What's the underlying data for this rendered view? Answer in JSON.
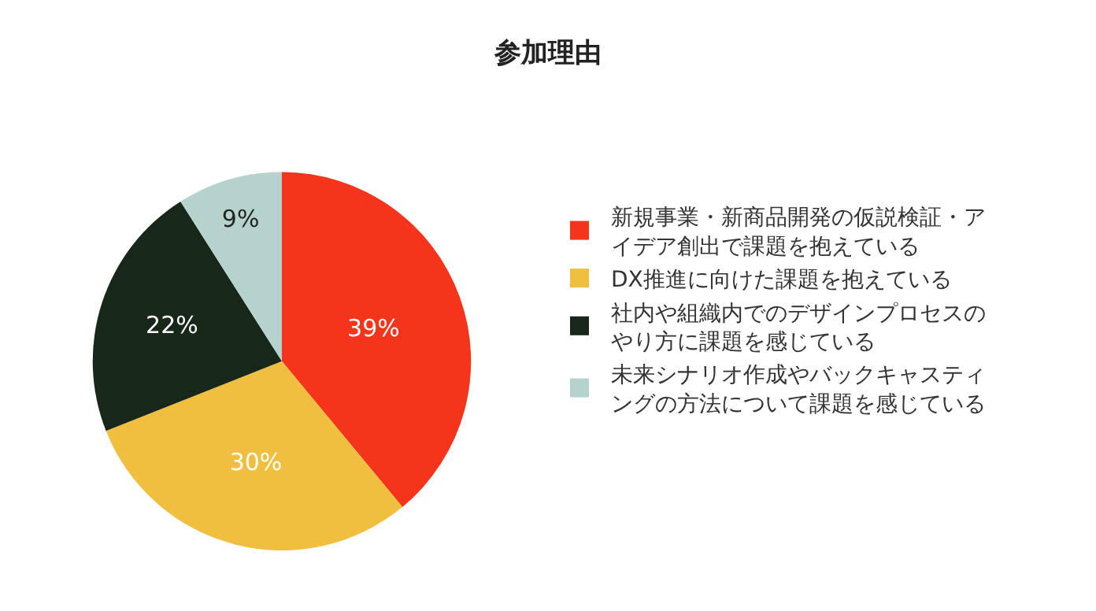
{
  "chart_data": {
    "type": "pie",
    "title": "参加理由",
    "categories": [
      "新規事業・新商品開発の仮説検証・アイデア創出で課題を抱えている",
      "DX推進に向けた課題を抱えている",
      "社内や組織内でのデザインプロセスのやり方に課題を感じている",
      "未来シナリオ作成やバックキャスティングの方法について課題を感じている"
    ],
    "values": [
      39,
      30,
      22,
      9
    ],
    "value_labels": [
      "39%",
      "30%",
      "22%",
      "9%"
    ],
    "colors": [
      "#f5341c",
      "#f0bf3f",
      "#17271a",
      "#b5d3cc"
    ],
    "legend": "right"
  }
}
